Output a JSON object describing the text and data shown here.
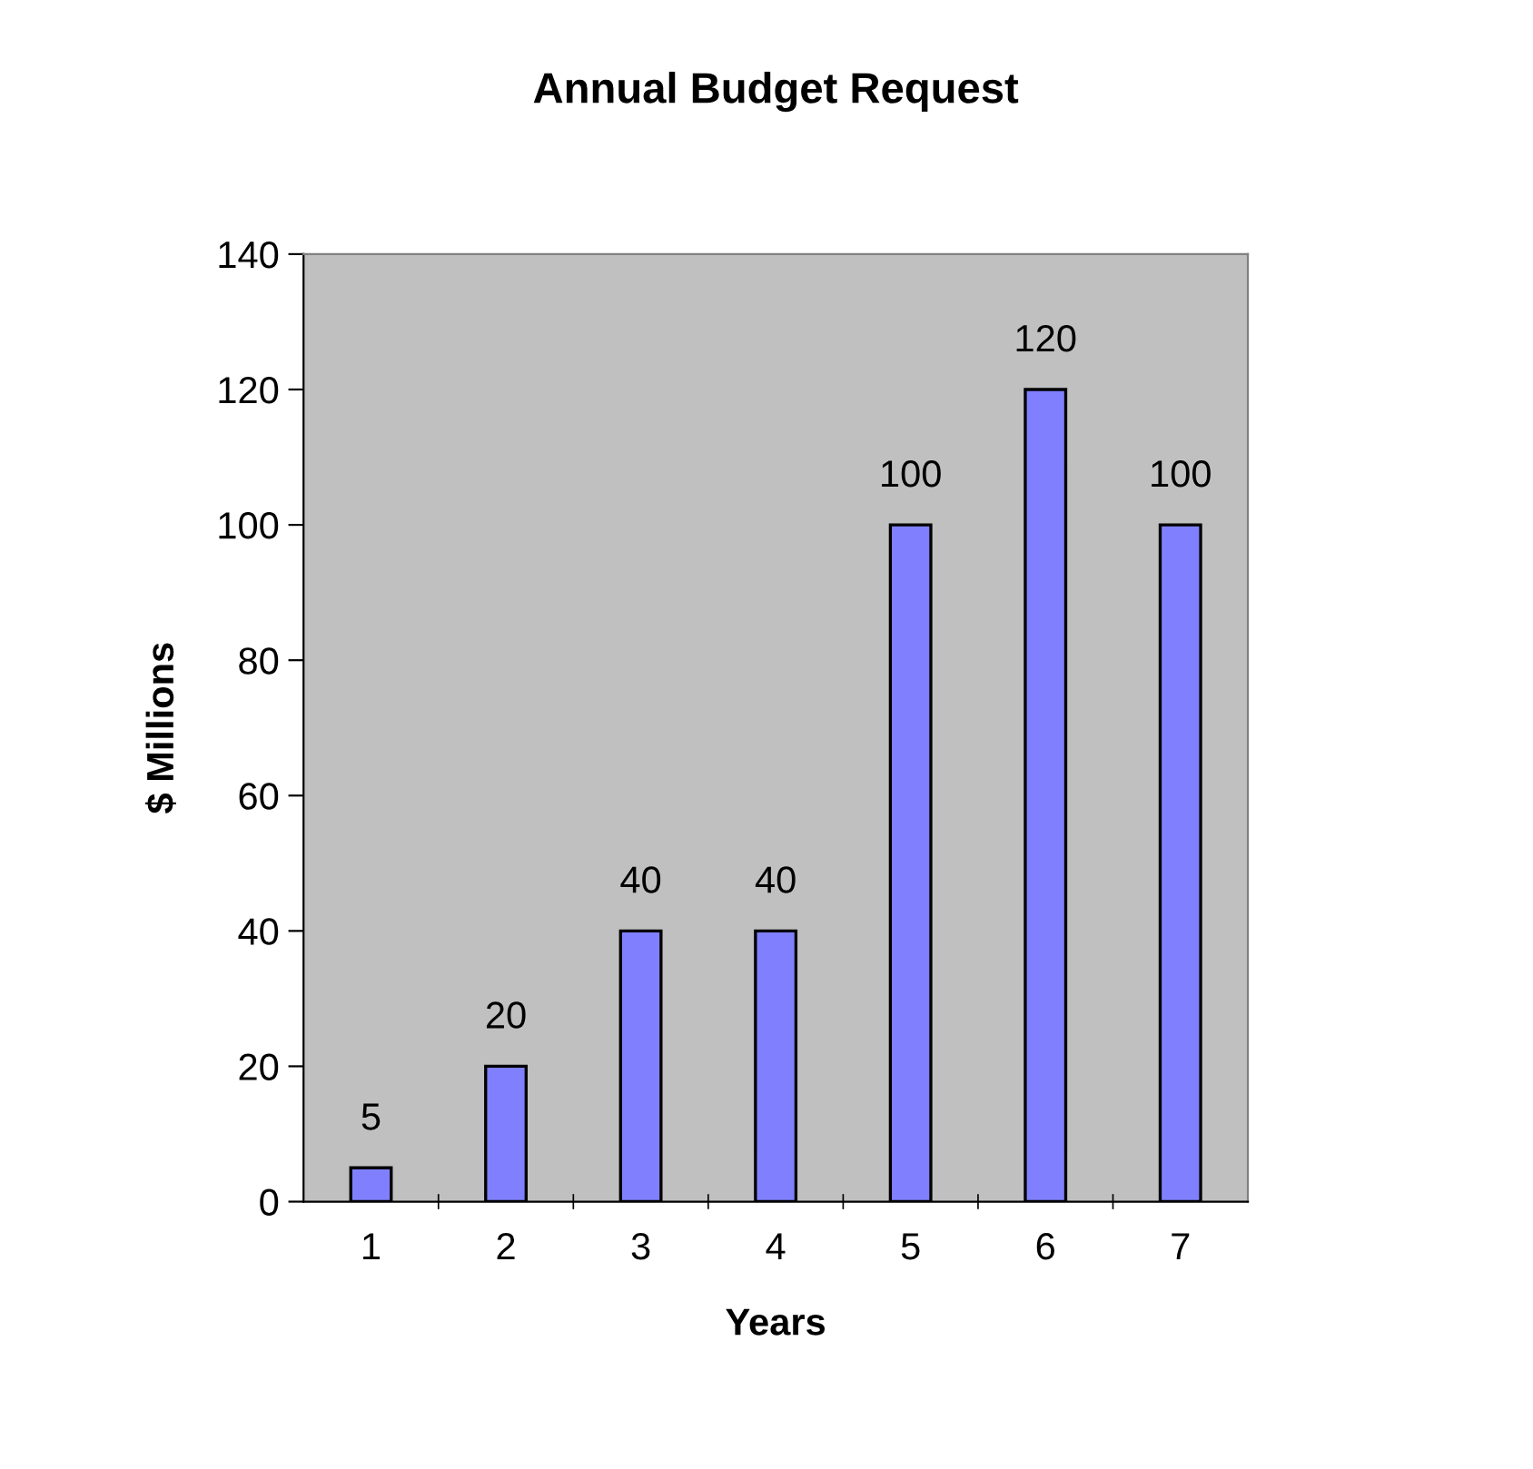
{
  "chart_data": {
    "type": "bar",
    "title": "Annual Budget Request",
    "xlabel": "Years",
    "ylabel": "$ Millions",
    "categories": [
      "1",
      "2",
      "3",
      "4",
      "5",
      "6",
      "7"
    ],
    "values": [
      5,
      20,
      40,
      40,
      100,
      120,
      100
    ],
    "color": "#8080ff",
    "ylim": [
      0,
      140
    ],
    "yticks": [
      0,
      20,
      40,
      60,
      80,
      100,
      120,
      140
    ],
    "grid": false,
    "data_labels": true,
    "legend": false
  }
}
